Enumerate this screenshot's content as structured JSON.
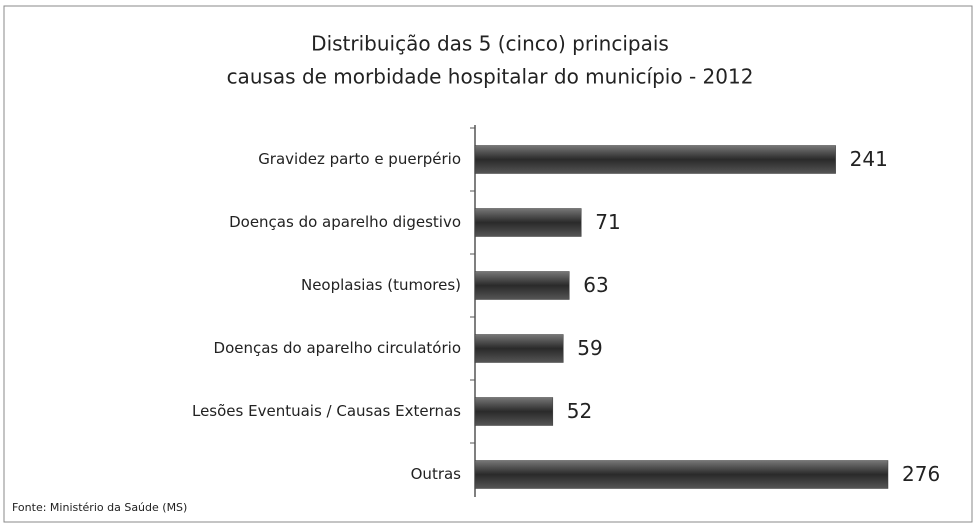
{
  "chart_data": {
    "type": "barh",
    "title": [
      "Distribuição das 5 (cinco) principais",
      "causas de morbidade hospitalar do município - 2012"
    ],
    "categories": [
      "Gravidez parto e puerpério",
      "Doenças do aparelho digestivo",
      "Neoplasias (tumores)",
      "Doenças do aparelho circulatório",
      "Lesões Eventuais / Causas Externas",
      "Outras"
    ],
    "values": [
      241,
      71,
      63,
      59,
      52,
      276
    ],
    "color": "#3a3a3a",
    "source": "Fonte: Ministério da Saúde (MS)"
  }
}
